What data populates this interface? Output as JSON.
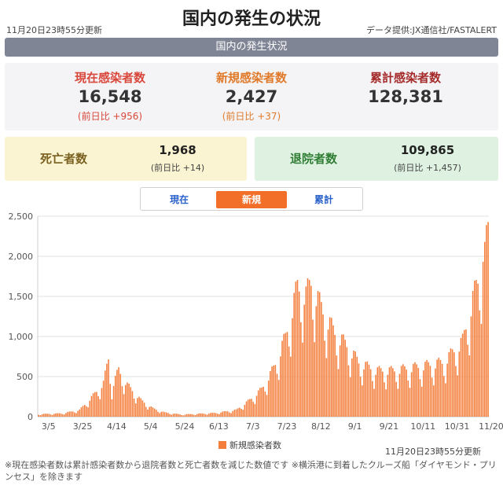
{
  "header": {
    "updated": "11月20日23時55分更新",
    "title": "国内の発生の状況",
    "source": "データ提供:JX通信社/FASTALERT"
  },
  "section_title": "国内の発生状況",
  "stats": {
    "current": {
      "label": "現在感染者数",
      "value": "16,548",
      "diff": "(前日比 +956)"
    },
    "new": {
      "label": "新規感染者数",
      "value": "2,427",
      "diff": "(前日比 +37)"
    },
    "total": {
      "label": "累計感染者数",
      "value": "128,381"
    }
  },
  "deaths": {
    "label": "死亡者数",
    "value": "1,968",
    "diff": "(前日比 +14)"
  },
  "discharged": {
    "label": "退院者数",
    "value": "109,865",
    "diff": "(前日比 +1,457)"
  },
  "tabs": [
    "現在",
    "新規",
    "累計"
  ],
  "active_tab": "新規",
  "colors": {
    "bar": "#f47f3d",
    "accent": "#f26f2a",
    "red": "#d9473b",
    "darkred": "#a52a2a",
    "deaths_bg": "#fbf4d2",
    "deaths_fg": "#7a6020",
    "discharged_bg": "#dff2e1",
    "discharged_fg": "#2e7d32"
  },
  "chart_data": {
    "type": "bar",
    "series": [
      {
        "name": "新規感染者数"
      }
    ],
    "x_tick_labels": [
      "3/5",
      "3/25",
      "4/14",
      "5/4",
      "5/24",
      "6/13",
      "7/3",
      "7/23",
      "8/12",
      "9/1",
      "9/21",
      "10/11",
      "10/31",
      "11/20"
    ],
    "y_ticks": [
      0,
      500,
      1000,
      1500,
      2000,
      2500
    ],
    "ylim": [
      0,
      2500
    ],
    "grid": "horizontal",
    "anchors": [
      [
        "3/1",
        30
      ],
      [
        "3/15",
        40
      ],
      [
        "3/25",
        80
      ],
      [
        "4/1",
        230
      ],
      [
        "4/8",
        400
      ],
      [
        "4/11",
        700
      ],
      [
        "4/13",
        350
      ],
      [
        "4/17",
        560
      ],
      [
        "4/22",
        380
      ],
      [
        "4/30",
        200
      ],
      [
        "5/7",
        100
      ],
      [
        "5/14",
        50
      ],
      [
        "5/24",
        25
      ],
      [
        "6/13",
        45
      ],
      [
        "6/25",
        80
      ],
      [
        "7/3",
        200
      ],
      [
        "7/10",
        330
      ],
      [
        "7/17",
        580
      ],
      [
        "7/24",
        950
      ],
      [
        "7/31",
        1550
      ],
      [
        "8/5",
        1450
      ],
      [
        "8/8",
        1600
      ],
      [
        "8/15",
        1250
      ],
      [
        "8/22",
        1000
      ],
      [
        "8/29",
        850
      ],
      [
        "9/5",
        650
      ],
      [
        "9/15",
        550
      ],
      [
        "9/25",
        550
      ],
      [
        "10/11",
        600
      ],
      [
        "10/25",
        650
      ],
      [
        "11/5",
        900
      ],
      [
        "11/11",
        1400
      ],
      [
        "11/15",
        1700
      ],
      [
        "11/18",
        2200
      ],
      [
        "11/20",
        2427
      ]
    ]
  },
  "chart_updated": "11月20日23時55分更新",
  "footnote": "※現在感染者数は累計感染者数から退院者数と死亡者数を減じた数値です ※横浜港に到着したクルーズ船「ダイヤモンド・プリンセス」を除きます"
}
